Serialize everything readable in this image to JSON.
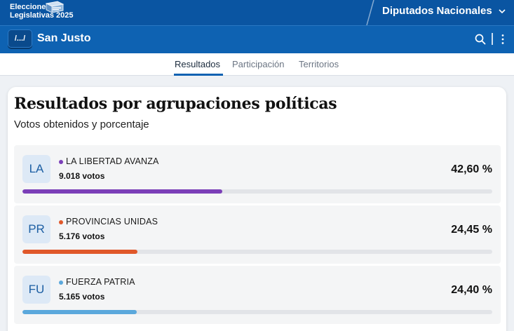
{
  "header": {
    "brand_line1": "Elecciones",
    "brand_line2": "Legislativas 2025",
    "category": "Diputados Nacionales",
    "place": "San Justo",
    "back_label": "/.../"
  },
  "tabs": [
    {
      "label": "Resultados",
      "active": true
    },
    {
      "label": "Participación",
      "active": false
    },
    {
      "label": "Territorios",
      "active": false
    }
  ],
  "card": {
    "title": "Resultados por agrupaciones políticas",
    "subtitle": "Votos obtenidos y porcentaje"
  },
  "parties": [
    {
      "abbr": "LA",
      "name": "LA LIBERTAD AVANZA",
      "votes": "9.018 votos",
      "percent": "42,60 %",
      "share": 42.6,
      "color": "#7b3fb8"
    },
    {
      "abbr": "PR",
      "name": "PROVINCIAS UNIDAS",
      "votes": "5.176 votos",
      "percent": "24,45 %",
      "share": 24.45,
      "color": "#e0582a"
    },
    {
      "abbr": "FU",
      "name": "FUERZA PATRIA",
      "votes": "5.165 votos",
      "percent": "24,40 %",
      "share": 24.4,
      "color": "#5ba8dc"
    }
  ],
  "icons": {
    "search": "search-icon",
    "more": "more-vertical-icon",
    "category_toggle": "chevron-down-icon",
    "brand": "ballot-box-icon"
  },
  "colors": {
    "primary": "#0a55a2",
    "secondary": "#0e62b2"
  }
}
